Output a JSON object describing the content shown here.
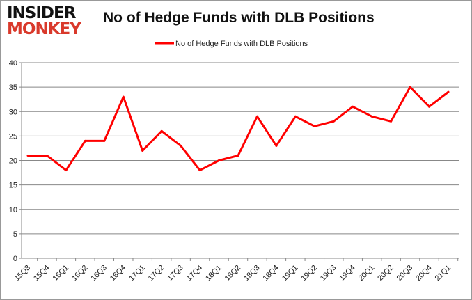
{
  "logo": {
    "line1": "INSIDER",
    "line2": "MONKEY"
  },
  "chart_data": {
    "type": "line",
    "title": "No of Hedge Funds with DLB Positions",
    "xlabel": "",
    "ylabel": "",
    "ylim": [
      0,
      40
    ],
    "yticks": [
      0,
      5,
      10,
      15,
      20,
      25,
      30,
      35,
      40
    ],
    "grid": true,
    "legend": "top-center",
    "categories": [
      "15Q3",
      "15Q4",
      "16Q1",
      "16Q2",
      "16Q3",
      "16Q4",
      "17Q1",
      "17Q2",
      "17Q3",
      "17Q4",
      "18Q1",
      "18Q2",
      "18Q3",
      "18Q4",
      "19Q1",
      "19Q2",
      "19Q3",
      "19Q4",
      "20Q1",
      "20Q2",
      "20Q3",
      "20Q4",
      "21Q1"
    ],
    "series": [
      {
        "name": "No of Hedge Funds with DLB Positions",
        "color": "#ff0000",
        "values": [
          21,
          21,
          18,
          24,
          24,
          33,
          22,
          26,
          23,
          18,
          20,
          21,
          29,
          23,
          29,
          27,
          28,
          31,
          29,
          28,
          35,
          31,
          34
        ]
      }
    ]
  }
}
